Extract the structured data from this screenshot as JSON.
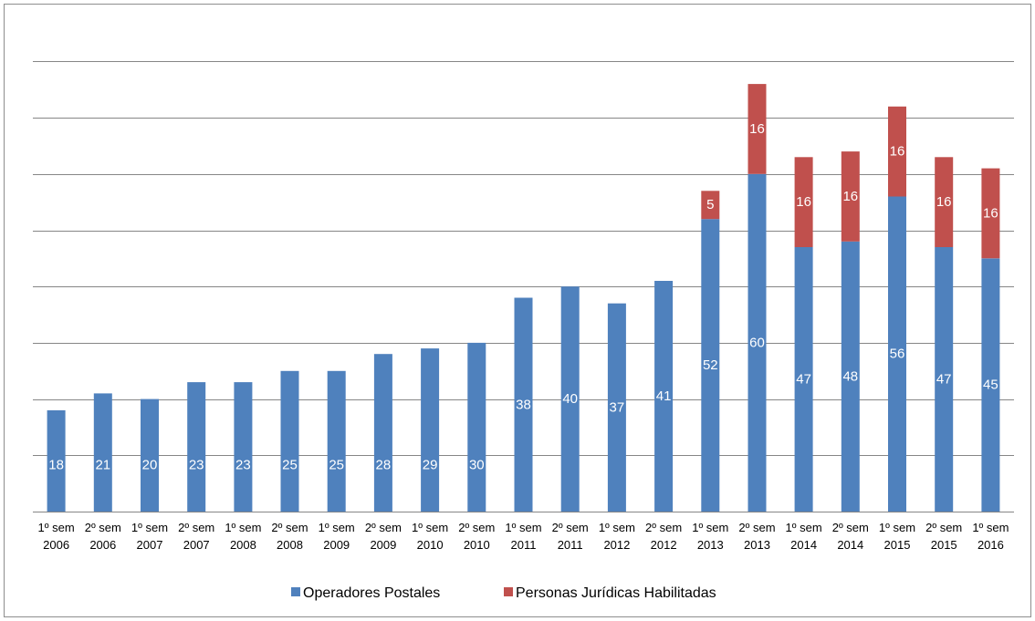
{
  "chart_data": {
    "type": "bar",
    "stacked": true,
    "categories": [
      [
        "1º sem",
        "2006"
      ],
      [
        "2º sem",
        "2006"
      ],
      [
        "1º sem",
        "2007"
      ],
      [
        "2º sem",
        "2007"
      ],
      [
        "1º sem",
        "2008"
      ],
      [
        "2º sem",
        "2008"
      ],
      [
        "1º sem",
        "2009"
      ],
      [
        "2º sem",
        "2009"
      ],
      [
        "1º sem",
        "2010"
      ],
      [
        "2º sem",
        "2010"
      ],
      [
        "1º sem",
        "2011"
      ],
      [
        "2º sem",
        "2011"
      ],
      [
        "1º sem",
        "2012"
      ],
      [
        "2º sem",
        "2012"
      ],
      [
        "1º sem",
        "2013"
      ],
      [
        "2º sem",
        "2013"
      ],
      [
        "1º sem",
        "2014"
      ],
      [
        "2º sem",
        "2014"
      ],
      [
        "1º sem",
        "2015"
      ],
      [
        "2º sem",
        "2015"
      ],
      [
        "1º sem",
        "2016"
      ]
    ],
    "series": [
      {
        "name": "Operadores Postales",
        "color": "#4f81bd",
        "values": [
          18,
          21,
          20,
          23,
          23,
          25,
          25,
          28,
          29,
          30,
          38,
          40,
          37,
          41,
          52,
          60,
          47,
          48,
          56,
          47,
          45
        ]
      },
      {
        "name": "Personas Jurídicas Habilitadas",
        "color": "#c0504d",
        "values": [
          0,
          0,
          0,
          0,
          0,
          0,
          0,
          0,
          0,
          0,
          0,
          0,
          0,
          0,
          5,
          16,
          16,
          16,
          16,
          16,
          16
        ]
      }
    ],
    "ylim": [
      0,
      80
    ],
    "gridlines": [
      10,
      20,
      30,
      40,
      50,
      60,
      70,
      80
    ],
    "legend_position": "bottom"
  }
}
